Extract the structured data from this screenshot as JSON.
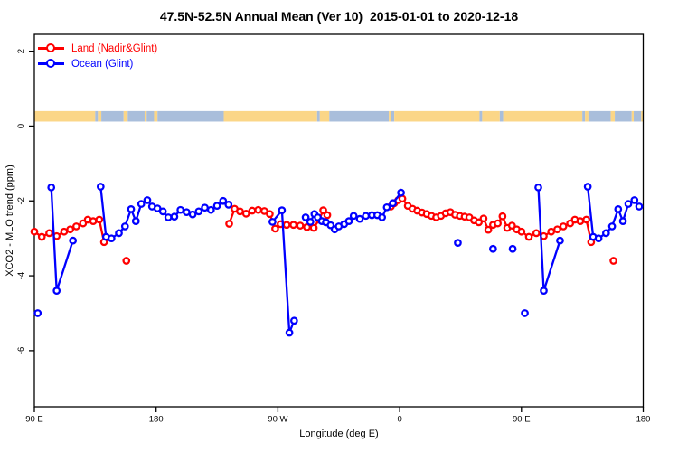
{
  "chart_data": {
    "type": "scatter",
    "title": "47.5N-52.5N Annual Mean (Ver 10)  2015-01-01 to 2020-12-18",
    "xlabel": "Longitude (deg E)",
    "ylabel": "XCO2 - MLO trend (ppm)",
    "x_axis": {
      "note": "longitude axis wraps: 90E eastward around the globe to 180, continuous coords 90..540",
      "range": [
        90,
        540
      ],
      "ticks": [
        {
          "lon": 90,
          "label": "90 E"
        },
        {
          "lon": 180,
          "label": "180"
        },
        {
          "lon": 270,
          "label": "90 W"
        },
        {
          "lon": 360,
          "label": "0"
        },
        {
          "lon": 450,
          "label": "90 E"
        },
        {
          "lon": 540,
          "label": "180"
        }
      ]
    },
    "y_axis": {
      "range": [
        -7.5,
        2.45
      ],
      "ticks": [
        {
          "value": 2,
          "label": "2"
        },
        {
          "value": 0,
          "label": "0"
        },
        {
          "value": -2,
          "label": "-2"
        },
        {
          "value": -4,
          "label": "-4"
        },
        {
          "value": -6,
          "label": "-6"
        }
      ]
    },
    "map_strip": {
      "comment": "land/ocean mask band for 47.5N-52.5N drawn just above y=0",
      "top": 0.4,
      "bottom": 0.12,
      "land_color": "#FBD687",
      "ocean_color": "#A9BEDB",
      "segments": [
        [
          "land",
          90,
          135
        ],
        [
          "ocean",
          135,
          137
        ],
        [
          "land",
          137,
          139.5
        ],
        [
          "ocean",
          139.5,
          156
        ],
        [
          "land",
          156,
          159
        ],
        [
          "ocean",
          159,
          171.5
        ],
        [
          "land",
          171.5,
          173
        ],
        [
          "ocean",
          173,
          178.5
        ],
        [
          "land",
          178.5,
          181
        ],
        [
          "ocean",
          181,
          230
        ],
        [
          "land",
          230,
          299
        ],
        [
          "ocean",
          299,
          301
        ],
        [
          "land",
          301,
          308
        ],
        [
          "ocean",
          308,
          352
        ],
        [
          "land",
          352,
          353.5
        ],
        [
          "ocean",
          353.5,
          356
        ],
        [
          "land",
          356,
          419
        ],
        [
          "ocean",
          419,
          421
        ],
        [
          "land",
          421,
          434
        ],
        [
          "ocean",
          434,
          436.5
        ],
        [
          "land",
          436.5,
          495
        ],
        [
          "ocean",
          495,
          497
        ],
        [
          "land",
          497,
          499.5
        ],
        [
          "ocean",
          499.5,
          516
        ],
        [
          "land",
          516,
          519
        ],
        [
          "ocean",
          519,
          531.5
        ],
        [
          "land",
          531.5,
          533
        ],
        [
          "ocean",
          533,
          538.5
        ],
        [
          "land",
          538.5,
          540
        ]
      ]
    },
    "series": [
      {
        "id": "land",
        "name": "Land (Nadir&Glint)",
        "color": "#ff0000",
        "chains": [
          [
            [
              90,
              -2.82
            ],
            [
              95.5,
              -2.96
            ],
            [
              101,
              -2.86
            ],
            [
              106.5,
              -2.94
            ],
            [
              112,
              -2.82
            ],
            [
              116.5,
              -2.76
            ],
            [
              121,
              -2.68
            ],
            [
              126,
              -2.6
            ],
            [
              129.5,
              -2.5
            ],
            [
              133.5,
              -2.54
            ],
            [
              138,
              -2.5
            ],
            [
              141.5,
              -3.1
            ]
          ],
          [
            [
              234,
              -2.61
            ],
            [
              238,
              -2.21
            ],
            [
              242,
              -2.28
            ],
            [
              246.5,
              -2.34
            ],
            [
              251,
              -2.26
            ],
            [
              255.5,
              -2.24
            ],
            [
              260,
              -2.27
            ],
            [
              264,
              -2.35
            ],
            [
              268,
              -2.74
            ],
            [
              272,
              -2.62
            ],
            [
              276.5,
              -2.64
            ],
            [
              281.5,
              -2.64
            ],
            [
              286.5,
              -2.66
            ],
            [
              291.5,
              -2.7
            ],
            [
              296.5,
              -2.72
            ],
            [
              300.5,
              -2.5
            ],
            [
              303.5,
              -2.25
            ],
            [
              306.5,
              -2.38
            ]
          ],
          [
            [
              353.5,
              -2.15
            ],
            [
              356,
              -2.06
            ],
            [
              359,
              -1.98
            ],
            [
              362,
              -1.94
            ],
            [
              366,
              -2.13
            ],
            [
              369.5,
              -2.21
            ],
            [
              373,
              -2.26
            ],
            [
              376.5,
              -2.31
            ],
            [
              380,
              -2.35
            ],
            [
              383.5,
              -2.4
            ],
            [
              387,
              -2.44
            ],
            [
              390.5,
              -2.4
            ],
            [
              394,
              -2.33
            ],
            [
              397.5,
              -2.3
            ],
            [
              401,
              -2.37
            ],
            [
              404.5,
              -2.4
            ],
            [
              408,
              -2.42
            ],
            [
              411.5,
              -2.44
            ],
            [
              415,
              -2.52
            ],
            [
              418.5,
              -2.57
            ],
            [
              422,
              -2.47
            ],
            [
              425.5,
              -2.77
            ],
            [
              429,
              -2.64
            ],
            [
              432.5,
              -2.6
            ],
            [
              436,
              -2.41
            ],
            [
              439.5,
              -2.72
            ],
            [
              443,
              -2.66
            ],
            [
              446.5,
              -2.76
            ],
            [
              450,
              -2.82
            ],
            [
              455.5,
              -2.96
            ],
            [
              461,
              -2.86
            ],
            [
              466.5,
              -2.94
            ],
            [
              472,
              -2.82
            ],
            [
              476.5,
              -2.76
            ],
            [
              481,
              -2.68
            ],
            [
              486,
              -2.6
            ],
            [
              489.5,
              -2.5
            ],
            [
              493.5,
              -2.54
            ],
            [
              498,
              -2.5
            ],
            [
              501.5,
              -3.1
            ]
          ]
        ],
        "isolated": [
          [
            158,
            -3.6
          ],
          [
            518,
            -3.6
          ]
        ]
      },
      {
        "id": "ocean",
        "name": "Ocean (Glint)",
        "color": "#0000ff",
        "chains": [
          [
            [
              102.5,
              -1.64
            ],
            [
              106.5,
              -4.4
            ],
            [
              118.5,
              -3.06
            ]
          ],
          [
            [
              139,
              -1.62
            ],
            [
              143,
              -2.96
            ],
            [
              147,
              -3.0
            ],
            [
              152.5,
              -2.86
            ],
            [
              157,
              -2.68
            ],
            [
              161.5,
              -2.22
            ],
            [
              165,
              -2.54
            ],
            [
              169,
              -2.08
            ],
            [
              173.5,
              -1.98
            ],
            [
              177,
              -2.15
            ],
            [
              181,
              -2.2
            ],
            [
              185,
              -2.28
            ],
            [
              189,
              -2.44
            ],
            [
              193.5,
              -2.42
            ],
            [
              198,
              -2.24
            ],
            [
              202.5,
              -2.3
            ],
            [
              207,
              -2.36
            ],
            [
              211.5,
              -2.28
            ],
            [
              216,
              -2.18
            ],
            [
              220.5,
              -2.24
            ],
            [
              225,
              -2.13
            ],
            [
              229.5,
              -2.0
            ],
            [
              233.5,
              -2.1
            ]
          ],
          [
            [
              266,
              -2.56
            ],
            [
              273,
              -2.25
            ],
            [
              278.5,
              -5.52
            ],
            [
              282,
              -5.2
            ]
          ],
          [
            [
              290.5,
              -2.44
            ],
            [
              294,
              -2.56
            ],
            [
              297,
              -2.35
            ],
            [
              299.5,
              -2.44
            ],
            [
              302.5,
              -2.54
            ],
            [
              305.5,
              -2.57
            ],
            [
              309,
              -2.65
            ],
            [
              312,
              -2.76
            ],
            [
              315,
              -2.68
            ],
            [
              319,
              -2.62
            ],
            [
              322.5,
              -2.54
            ],
            [
              326,
              -2.4
            ],
            [
              330.5,
              -2.48
            ],
            [
              335,
              -2.4
            ],
            [
              339.5,
              -2.38
            ],
            [
              343.5,
              -2.38
            ],
            [
              347,
              -2.44
            ],
            [
              350.5,
              -2.17
            ],
            [
              355,
              -2.06
            ],
            [
              361,
              -1.78
            ]
          ],
          [
            [
              462.5,
              -1.64
            ],
            [
              466.5,
              -4.4
            ],
            [
              478.5,
              -3.06
            ]
          ],
          [
            [
              499,
              -1.62
            ],
            [
              503,
              -2.96
            ],
            [
              507,
              -3.0
            ],
            [
              512.5,
              -2.86
            ],
            [
              517,
              -2.68
            ],
            [
              521.5,
              -2.22
            ],
            [
              525,
              -2.54
            ],
            [
              529,
              -2.08
            ],
            [
              533.5,
              -1.98
            ],
            [
              537,
              -2.15
            ]
          ]
        ],
        "isolated": [
          [
            92.5,
            -5.0
          ],
          [
            403,
            -3.12
          ],
          [
            429,
            -3.28
          ],
          [
            443.5,
            -3.28
          ],
          [
            452.5,
            -5.0
          ]
        ]
      }
    ]
  }
}
